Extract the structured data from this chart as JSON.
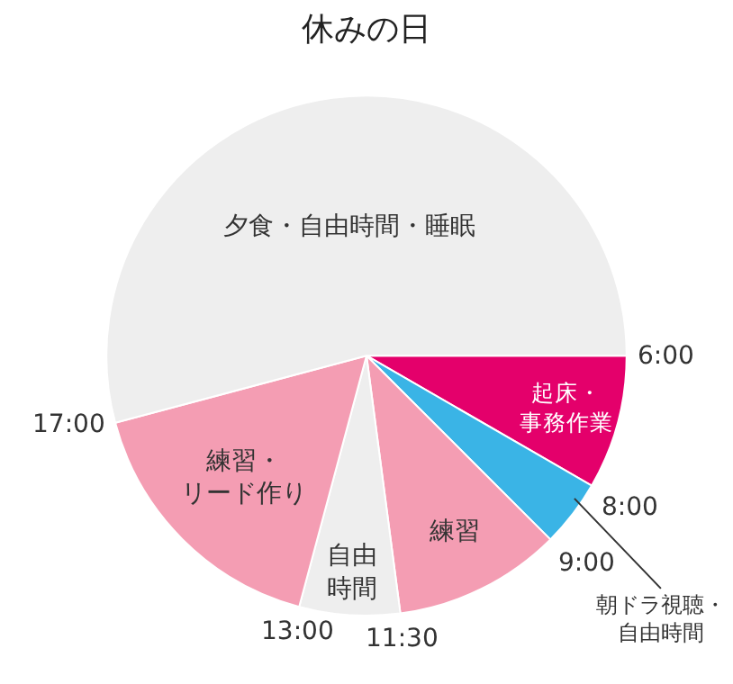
{
  "chart_data": {
    "type": "pie",
    "title": "休みの日",
    "categories": [
      "起床・事務作業",
      "朝ドラ視聴・自由時間",
      "練習",
      "自由時間",
      "練習・リード作り",
      "夕食・自由時間・睡眠"
    ],
    "values": [
      8.33,
      4.17,
      10.42,
      6.25,
      16.67,
      54.16
    ],
    "colors": [
      "#e4006b",
      "#3ab4e6",
      "#f49db3",
      "#eeeeee",
      "#f49db3",
      "#eeeeee"
    ],
    "annotations": [
      "6:00",
      "8:00",
      "9:00",
      "11:30",
      "13:00",
      "17:00"
    ],
    "legend": false
  }
}
